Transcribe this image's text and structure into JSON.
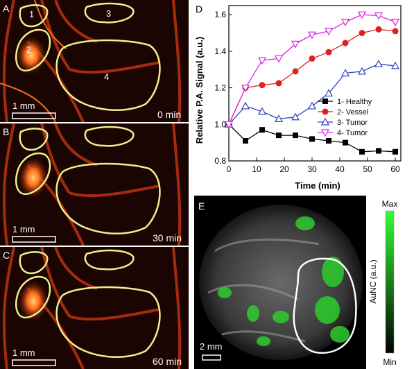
{
  "panels": {
    "A": {
      "label": "A",
      "time": "0 min",
      "scale": "1 mm"
    },
    "B": {
      "label": "B",
      "time": "30 min",
      "scale": "1 mm"
    },
    "C": {
      "label": "C",
      "time": "60 min",
      "scale": "1 mm"
    },
    "E": {
      "label": "E",
      "scale": "2 mm",
      "colorbar_title": "AuNC (a.u.)",
      "max_label": "Max",
      "min_label": "Min"
    }
  },
  "regions": [
    "1",
    "2",
    "3",
    "4"
  ],
  "colors": {
    "healthy": "#000000",
    "vessel": "#e02020",
    "tumor3": "#3040c0",
    "tumor4": "#e020e0",
    "roi": "#f0f08c",
    "aunc": "#2ecc2e"
  },
  "chart_data": {
    "type": "line",
    "panel_label": "D",
    "xlabel": "Time (min)",
    "ylabel": "Relative P.A. Signal (a.u.)",
    "xlim": [
      0,
      62
    ],
    "ylim": [
      0.8,
      1.65
    ],
    "xticks": [
      0,
      10,
      20,
      30,
      40,
      50,
      60
    ],
    "yticks": [
      0.8,
      1.0,
      1.2,
      1.4,
      1.6
    ],
    "legend_position": "bottom-right",
    "x": [
      0,
      6,
      12,
      18,
      24,
      30,
      36,
      42,
      48,
      54,
      60
    ],
    "series": [
      {
        "name": "1- Healthy",
        "marker": "square",
        "color": "#000000",
        "values": [
          1.0,
          0.91,
          0.97,
          0.94,
          0.94,
          0.92,
          0.91,
          0.9,
          0.85,
          0.855,
          0.85
        ]
      },
      {
        "name": "2- Vessel",
        "marker": "circle",
        "color": "#e02020",
        "values": [
          1.0,
          1.2,
          1.215,
          1.225,
          1.29,
          1.36,
          1.395,
          1.445,
          1.5,
          1.52,
          1.51
        ]
      },
      {
        "name": "3- Tumor",
        "marker": "triangle-up",
        "color": "#3040c0",
        "values": [
          1.0,
          1.1,
          1.07,
          1.03,
          1.04,
          1.1,
          1.17,
          1.28,
          1.29,
          1.33,
          1.32
        ]
      },
      {
        "name": "4- Tumor",
        "marker": "triangle-down",
        "color": "#e020e0",
        "values": [
          1.0,
          1.2,
          1.35,
          1.36,
          1.44,
          1.49,
          1.51,
          1.56,
          1.6,
          1.595,
          1.56
        ]
      }
    ]
  }
}
